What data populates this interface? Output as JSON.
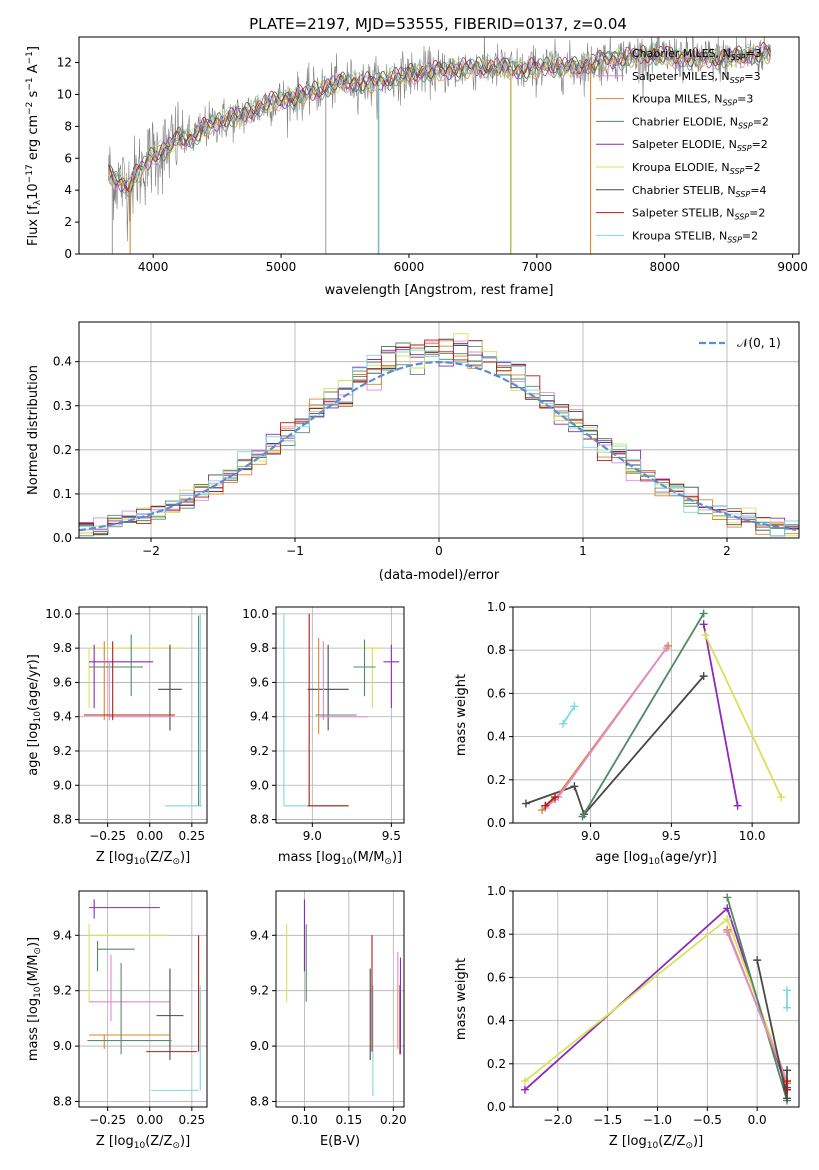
{
  "colors": {
    "Chabrier MILES": "#5b8c6c",
    "Salpeter MILES": "#e48ad2",
    "Kroupa MILES": "#d9882a",
    "Chabrier ELODIE": "#4f8a64",
    "Salpeter ELODIE": "#8e2ab7",
    "Kroupa ELODIE": "#d7e15a",
    "Chabrier STELIB": "#484848",
    "Salpeter STELIB": "#b01e14",
    "Kroupa STELIB": "#7fd8dc",
    "data": "#808080",
    "normal": "#5b8dd6"
  },
  "chart_data": [
    {
      "id": "spectrum",
      "type": "line",
      "title": "PLATE=2197, MJD=53555, FIBERID=0137, z=0.04",
      "xlabel": "wavelength [Angstrom, rest frame]",
      "ylabel": "Flux [f",
      "ylabel_sub": "λ",
      "ylabel_rest": "10",
      "ylabel_sup1": "−17",
      "ylabel_tail": " erg cm",
      "ylabel_sup2": "−2",
      "ylabel_tail2": " s",
      "ylabel_sup3": "−1",
      "ylabel_tail3": " A",
      "ylabel_sup4": "−1",
      "ylabel_close": "]",
      "xlim": [
        3420,
        9050
      ],
      "ylim": [
        0,
        13.6
      ],
      "xticks": [
        4000,
        5000,
        6000,
        7000,
        8000,
        9000
      ],
      "yticks": [
        0,
        2,
        4,
        6,
        8,
        10,
        12
      ],
      "legend_position": "upper-right",
      "legend": [
        {
          "name": "Chabrier MILES",
          "nssp": "3"
        },
        {
          "name": "Salpeter MILES",
          "nssp": "3"
        },
        {
          "name": "Kroupa MILES",
          "nssp": "3"
        },
        {
          "name": "Chabrier ELODIE",
          "nssp": "2"
        },
        {
          "name": "Salpeter ELODIE",
          "nssp": "2"
        },
        {
          "name": "Kroupa ELODIE",
          "nssp": "2"
        },
        {
          "name": "Chabrier STELIB",
          "nssp": "4"
        },
        {
          "name": "Salpeter STELIB",
          "nssp": "2"
        },
        {
          "name": "Kroupa STELIB",
          "nssp": "2"
        }
      ],
      "legend_n": "N",
      "legend_sub": "SSP",
      "continuum": [
        [
          3650,
          5.0
        ],
        [
          3800,
          4.2
        ],
        [
          3900,
          5.3
        ],
        [
          4000,
          6.2
        ],
        [
          4100,
          6.5
        ],
        [
          4200,
          7.3
        ],
        [
          4300,
          7.2
        ],
        [
          4400,
          7.9
        ],
        [
          4500,
          8.3
        ],
        [
          4700,
          8.7
        ],
        [
          4900,
          9.5
        ],
        [
          5100,
          9.8
        ],
        [
          5300,
          10.3
        ],
        [
          5500,
          10.8
        ],
        [
          5700,
          10.7
        ],
        [
          5900,
          11.1
        ],
        [
          6100,
          11.4
        ],
        [
          6300,
          11.5
        ],
        [
          6500,
          11.7
        ],
        [
          6700,
          11.7
        ],
        [
          6900,
          11.5
        ],
        [
          7100,
          11.8
        ],
        [
          7300,
          11.7
        ],
        [
          7500,
          12.1
        ],
        [
          7700,
          12.3
        ],
        [
          7900,
          12.5
        ],
        [
          8100,
          12.3
        ],
        [
          8300,
          12.2
        ],
        [
          8500,
          12.3
        ],
        [
          8700,
          12.5
        ],
        [
          8830,
          12.6
        ]
      ],
      "data_drops": [
        [
          3680,
          0.0
        ],
        [
          5350,
          0.0
        ],
        [
          5760,
          0.0
        ],
        [
          6795,
          0.0
        ]
      ],
      "model_drops": [
        {
          "x": 3820,
          "model": "Kroupa MILES"
        },
        {
          "x": 5765,
          "model": "Kroupa STELIB"
        },
        {
          "x": 6800,
          "model": "Kroupa ELODIE"
        },
        {
          "x": 7420,
          "model": "Kroupa MILES"
        }
      ]
    },
    {
      "id": "residuals",
      "type": "histogram",
      "xlabel": "(data-model)/error",
      "ylabel": "Normed distribution",
      "xlim": [
        -2.5,
        2.5
      ],
      "ylim": [
        0,
        0.49
      ],
      "xticks": [
        -2,
        -1,
        0,
        1,
        2
      ],
      "yticks": [
        0.0,
        0.1,
        0.2,
        0.3,
        0.4
      ],
      "ytick_labels": [
        "0.0",
        "0.1",
        "0.2",
        "0.3",
        "0.4"
      ],
      "bin_width": 0.1,
      "legend_label": "𝒩(0, 1)",
      "legend_position": "upper-right"
    },
    {
      "id": "age-vs-Z",
      "type": "errorbar",
      "xlabel": "Z [log",
      "xlabel_sub": "10",
      "xlabel_rest": "(Z/Z",
      "xlabel_sub2": "⊙",
      "xlabel_close": ")]",
      "ylabel": "age  [log",
      "ylabel_sub": "10",
      "ylabel_rest": "(age/yr)]",
      "xlim": [
        -0.42,
        0.34
      ],
      "ylim": [
        8.78,
        10.04
      ],
      "xticks": [
        -0.25,
        0.0,
        0.25
      ],
      "xtick_labels": [
        "−0.25",
        "0.00",
        "0.25"
      ],
      "yticks": [
        8.8,
        9.0,
        9.2,
        9.4,
        9.6,
        9.8,
        10.0
      ],
      "ytick_labels": [
        "8.8",
        "9.0",
        "9.2",
        "9.4",
        "9.6",
        "9.8",
        "10.0"
      ],
      "points": [
        {
          "model": "Kroupa ELODIE",
          "x": -0.07,
          "xerr": 0.28,
          "y": 9.8,
          "yerr": 0.0,
          "vx": -0.36,
          "vy": [
            9.45,
            9.8
          ]
        },
        {
          "model": "Salpeter ELODIE",
          "x": -0.17,
          "xerr": 0.19,
          "y": 9.72,
          "yerr": 0.0,
          "vx": -0.33,
          "vy": [
            9.45,
            9.82
          ]
        },
        {
          "model": "Chabrier ELODIE",
          "x": -0.2,
          "xerr": 0.16,
          "y": 9.69,
          "yerr": 0.0,
          "vx": -0.11,
          "vy": [
            9.52,
            9.88
          ]
        },
        {
          "model": "Chabrier STELIB",
          "x": 0.12,
          "xerr": 0.07,
          "y": 9.56,
          "yerr": 0.2,
          "vx": 0.12,
          "vy": [
            9.32,
            9.82
          ]
        },
        {
          "model": "Kroupa MILES",
          "x": -0.12,
          "xerr": 0.25,
          "y": 9.41,
          "yerr": 0.0,
          "vx": -0.27,
          "vy": [
            9.38,
            9.84
          ]
        },
        {
          "model": "Salpeter MILES",
          "x": -0.05,
          "xerr": 0.19,
          "y": 9.4,
          "yerr": 0.0,
          "vx": -0.24,
          "vy": [
            9.38,
            9.72
          ]
        },
        {
          "model": "Salpeter STELIB",
          "x": -0.12,
          "xerr": 0.27,
          "y": 9.41,
          "yerr": 0.0,
          "vx": -0.22,
          "vy": [
            9.38,
            9.84
          ]
        },
        {
          "model": "Kroupa STELIB",
          "x": 0.2,
          "xerr": 0.11,
          "y": 8.88,
          "yerr": 0.0,
          "vx": 0.3,
          "vy": [
            8.88,
            10.0
          ]
        },
        {
          "model": "Chabrier MILES",
          "x": 0.28,
          "xerr": 0.0,
          "y": 9.0,
          "yerr": 1.0,
          "vx": 0.29,
          "vy": [
            8.88,
            9.99
          ]
        }
      ]
    },
    {
      "id": "age-vs-mass",
      "type": "errorbar",
      "xlabel": "mass [log",
      "xlabel_sub": "10",
      "xlabel_rest": "(M/M",
      "xlabel_sub2": "⊙",
      "xlabel_close": ")]",
      "xlim": [
        8.77,
        9.58
      ],
      "ylim": [
        8.78,
        10.04
      ],
      "xticks": [
        9.0,
        9.5
      ],
      "xtick_labels": [
        "9.0",
        "9.5"
      ],
      "yticks": [
        8.8,
        9.0,
        9.2,
        9.4,
        9.6,
        9.8,
        10.0
      ],
      "ytick_labels": [
        "8.8",
        "9.0",
        "9.2",
        "9.4",
        "9.6",
        "9.8",
        "10.0"
      ],
      "points": [
        {
          "model": "Kroupa STELIB",
          "x": 9.02,
          "xerr": 0.2,
          "y": 8.88,
          "vx": 8.82,
          "vy": [
            8.88,
            10.0
          ]
        },
        {
          "model": "Salpeter STELIB",
          "x": 9.1,
          "xerr": 0.13,
          "y": 8.88,
          "vx": 8.98,
          "vy": [
            8.88,
            10.0
          ]
        },
        {
          "model": "Kroupa ELODIE",
          "x": 9.38,
          "xerr": 0.07,
          "y": 9.8,
          "vx": 9.38,
          "vy": [
            9.45,
            9.8
          ]
        },
        {
          "model": "Salpeter ELODIE",
          "x": 9.5,
          "xerr": 0.05,
          "y": 9.72,
          "vx": 9.5,
          "vy": [
            9.45,
            9.82
          ]
        },
        {
          "model": "Chabrier ELODIE",
          "x": 9.33,
          "xerr": 0.07,
          "y": 9.69,
          "vx": 9.33,
          "vy": [
            9.52,
            9.85
          ]
        },
        {
          "model": "Chabrier STELIB",
          "x": 9.1,
          "xerr": 0.13,
          "y": 9.56,
          "vx": 9.1,
          "vy": [
            9.32,
            9.82
          ]
        },
        {
          "model": "Kroupa MILES",
          "x": 9.04,
          "xerr": 0.0,
          "y": 9.41,
          "vx": 9.04,
          "vy": [
            9.3,
            9.86
          ]
        },
        {
          "model": "Salpeter MILES",
          "x": 9.2,
          "xerr": 0.15,
          "y": 9.4,
          "vx": 9.07,
          "vy": [
            9.38,
            9.84
          ]
        },
        {
          "model": "Chabrier MILES",
          "x": 9.15,
          "xerr": 0.13,
          "y": 9.41,
          "vx": 9.15,
          "vy": [
            9.4,
            9.4
          ]
        }
      ]
    },
    {
      "id": "weight-vs-age",
      "type": "line",
      "xlabel": "age  [log",
      "xlabel_sub": "10",
      "xlabel_rest": "(age/yr)]",
      "ylabel": "mass weight",
      "xlim": [
        8.52,
        10.29
      ],
      "ylim": [
        0.0,
        1.0
      ],
      "xticks": [
        9.0,
        9.5,
        10.0
      ],
      "xtick_labels": [
        "9.0",
        "9.5",
        "10.0"
      ],
      "yticks": [
        0.0,
        0.2,
        0.4,
        0.6,
        0.8,
        1.0
      ],
      "ytick_labels": [
        "0.0",
        "0.2",
        "0.4",
        "0.6",
        "0.8",
        "1.0"
      ],
      "series": [
        {
          "model": "Chabrier STELIB",
          "x": [
            8.6,
            8.9,
            8.96,
            9.7
          ],
          "y": [
            0.09,
            0.17,
            0.04,
            0.68
          ]
        },
        {
          "model": "Chabrier ELODIE",
          "x": [
            8.95,
            9.7
          ],
          "y": [
            0.03,
            0.97
          ]
        },
        {
          "model": "Kroupa MILES",
          "x": [
            8.7,
            8.78,
            9.48
          ],
          "y": [
            0.06,
            0.11,
            0.82
          ]
        },
        {
          "model": "Salpeter MILES",
          "x": [
            8.72,
            8.8,
            9.47
          ],
          "y": [
            0.07,
            0.12,
            0.81
          ]
        },
        {
          "model": "Salpeter ELODIE",
          "x": [
            9.7,
            9.91
          ],
          "y": [
            0.92,
            0.08
          ]
        },
        {
          "model": "Kroupa ELODIE",
          "x": [
            9.71,
            10.18
          ],
          "y": [
            0.87,
            0.12
          ]
        },
        {
          "model": "Kroupa STELIB",
          "x": [
            8.83,
            8.9
          ],
          "y": [
            0.46,
            0.54
          ]
        },
        {
          "model": "Salpeter STELIB",
          "x": [
            8.72,
            8.78
          ],
          "y": [
            0.08,
            0.12
          ]
        }
      ]
    },
    {
      "id": "mass-vs-Z",
      "type": "errorbar",
      "xlabel": "Z [log",
      "xlabel_sub": "10",
      "xlabel_rest": "(Z/Z",
      "xlabel_sub2": "⊙",
      "xlabel_close": ")]",
      "ylabel": "mass [log",
      "ylabel_sub": "10",
      "ylabel_rest": "(M/M",
      "ylabel_sub2": "⊙",
      "ylabel_close": ")]",
      "xlim": [
        -0.42,
        0.34
      ],
      "ylim": [
        8.78,
        9.56
      ],
      "xticks": [
        -0.25,
        0.0,
        0.25
      ],
      "xtick_labels": [
        "−0.25",
        "0.00",
        "0.25"
      ],
      "yticks": [
        8.8,
        9.0,
        9.2,
        9.4
      ],
      "ytick_labels": [
        "8.8",
        "9.0",
        "9.2",
        "9.4"
      ],
      "points": [
        {
          "model": "Salpeter ELODIE",
          "x": -0.15,
          "xerr": 0.21,
          "y": 9.5,
          "vx": -0.33,
          "vy": [
            9.46,
            9.53
          ]
        },
        {
          "model": "Kroupa ELODIE",
          "x": -0.12,
          "xerr": 0.23,
          "y": 9.4,
          "vx": -0.36,
          "vy": [
            9.16,
            9.44
          ]
        },
        {
          "model": "Chabrier ELODIE",
          "x": -0.2,
          "xerr": 0.11,
          "y": 9.35,
          "vx": -0.31,
          "vy": [
            9.27,
            9.38
          ]
        },
        {
          "model": "Salpeter MILES",
          "x": -0.12,
          "xerr": 0.24,
          "y": 9.16,
          "vx": -0.23,
          "vy": [
            9.09,
            9.33
          ]
        },
        {
          "model": "Chabrier STELIB",
          "x": 0.12,
          "xerr": 0.08,
          "y": 9.11,
          "vx": 0.12,
          "vy": [
            8.95,
            9.28
          ]
        },
        {
          "model": "Kroupa MILES",
          "x": -0.12,
          "xerr": 0.24,
          "y": 9.04,
          "vx": -0.27,
          "vy": [
            8.99,
            9.04
          ]
        },
        {
          "model": "Chabrier MILES",
          "x": -0.12,
          "xerr": 0.25,
          "y": 9.02,
          "vx": -0.17,
          "vy": [
            8.97,
            9.3
          ]
        },
        {
          "model": "Salpeter STELIB",
          "x": 0.13,
          "xerr": 0.15,
          "y": 8.98,
          "vx": 0.29,
          "vy": [
            8.98,
            9.4
          ]
        },
        {
          "model": "Kroupa STELIB",
          "x": 0.15,
          "xerr": 0.14,
          "y": 8.84,
          "vx": 0.3,
          "vy": [
            8.84,
            9.22
          ]
        }
      ]
    },
    {
      "id": "mass-vs-ebv",
      "type": "errorbar",
      "xlabel": "E(B-V)",
      "xlim": [
        0.068,
        0.212
      ],
      "ylim": [
        8.78,
        9.56
      ],
      "xticks": [
        0.1,
        0.15,
        0.2
      ],
      "xtick_labels": [
        "0.10",
        "0.15",
        "0.20"
      ],
      "yticks": [
        8.8,
        9.0,
        9.2,
        9.4
      ],
      "ytick_labels": [
        "8.8",
        "9.0",
        "9.2",
        "9.4"
      ],
      "points": [
        {
          "model": "Kroupa ELODIE",
          "x": 0.08,
          "vy": [
            9.16,
            9.44
          ]
        },
        {
          "model": "Salpeter ELODIE",
          "x": 0.1,
          "vy": [
            9.27,
            9.53
          ]
        },
        {
          "model": "Chabrier ELODIE",
          "x": 0.102,
          "vy": [
            9.16,
            9.44
          ]
        },
        {
          "model": "Chabrier STELIB",
          "x": 0.174,
          "vy": [
            8.95,
            9.28
          ]
        },
        {
          "model": "Kroupa STELIB",
          "x": 0.177,
          "vy": [
            8.82,
            9.22
          ]
        },
        {
          "model": "Salpeter STELIB",
          "x": 0.176,
          "vy": [
            8.98,
            9.4
          ]
        },
        {
          "model": "Salpeter MILES",
          "x": 0.205,
          "vy": [
            8.99,
            9.34
          ]
        },
        {
          "model": "Kroupa MILES",
          "x": 0.207,
          "vy": [
            8.97,
            9.22
          ]
        },
        {
          "model": "Salpeter ELODIE",
          "x": 0.208,
          "vy": [
            8.97,
            9.32
          ]
        }
      ]
    },
    {
      "id": "weight-vs-Z",
      "type": "line",
      "xlabel": "Z [log",
      "xlabel_sub": "10",
      "xlabel_rest": "(Z/Z",
      "xlabel_sub2": "⊙",
      "xlabel_close": ")]",
      "ylabel": "mass weight",
      "xlim": [
        -2.45,
        0.42
      ],
      "ylim": [
        0.0,
        1.0
      ],
      "xticks": [
        -2.0,
        -1.5,
        -1.0,
        -0.5,
        0.0
      ],
      "xtick_labels": [
        "−2.0",
        "−1.5",
        "−1.0",
        "−0.5",
        "0.0"
      ],
      "yticks": [
        0.0,
        0.2,
        0.4,
        0.6,
        0.8,
        1.0
      ],
      "ytick_labels": [
        "0.0",
        "0.2",
        "0.4",
        "0.6",
        "0.8",
        "1.0"
      ],
      "series": [
        {
          "model": "Salpeter ELODIE",
          "x": [
            -2.33,
            -0.3,
            0.3
          ],
          "y": [
            0.08,
            0.92,
            0.08
          ]
        },
        {
          "model": "Kroupa ELODIE",
          "x": [
            -2.33,
            -0.3,
            0.3
          ],
          "y": [
            0.12,
            0.87,
            0.12
          ]
        },
        {
          "model": "Chabrier ELODIE",
          "x": [
            -0.3,
            0.3
          ],
          "y": [
            0.97,
            0.03
          ]
        },
        {
          "model": "Kroupa MILES",
          "x": [
            -0.3,
            0.3
          ],
          "y": [
            0.82,
            0.11
          ]
        },
        {
          "model": "Salpeter MILES",
          "x": [
            -0.3,
            0.3
          ],
          "y": [
            0.81,
            0.12
          ]
        },
        {
          "model": "Chabrier STELIB",
          "x": [
            0.0,
            0.3,
            0.3,
            0.3
          ],
          "y": [
            0.68,
            0.04,
            0.17,
            0.09
          ]
        },
        {
          "model": "Kroupa STELIB",
          "x": [
            0.3,
            0.3
          ],
          "y": [
            0.46,
            0.54
          ]
        },
        {
          "model": "Salpeter STELIB",
          "x": [
            0.3,
            0.3
          ],
          "y": [
            0.08,
            0.12
          ]
        }
      ]
    }
  ]
}
